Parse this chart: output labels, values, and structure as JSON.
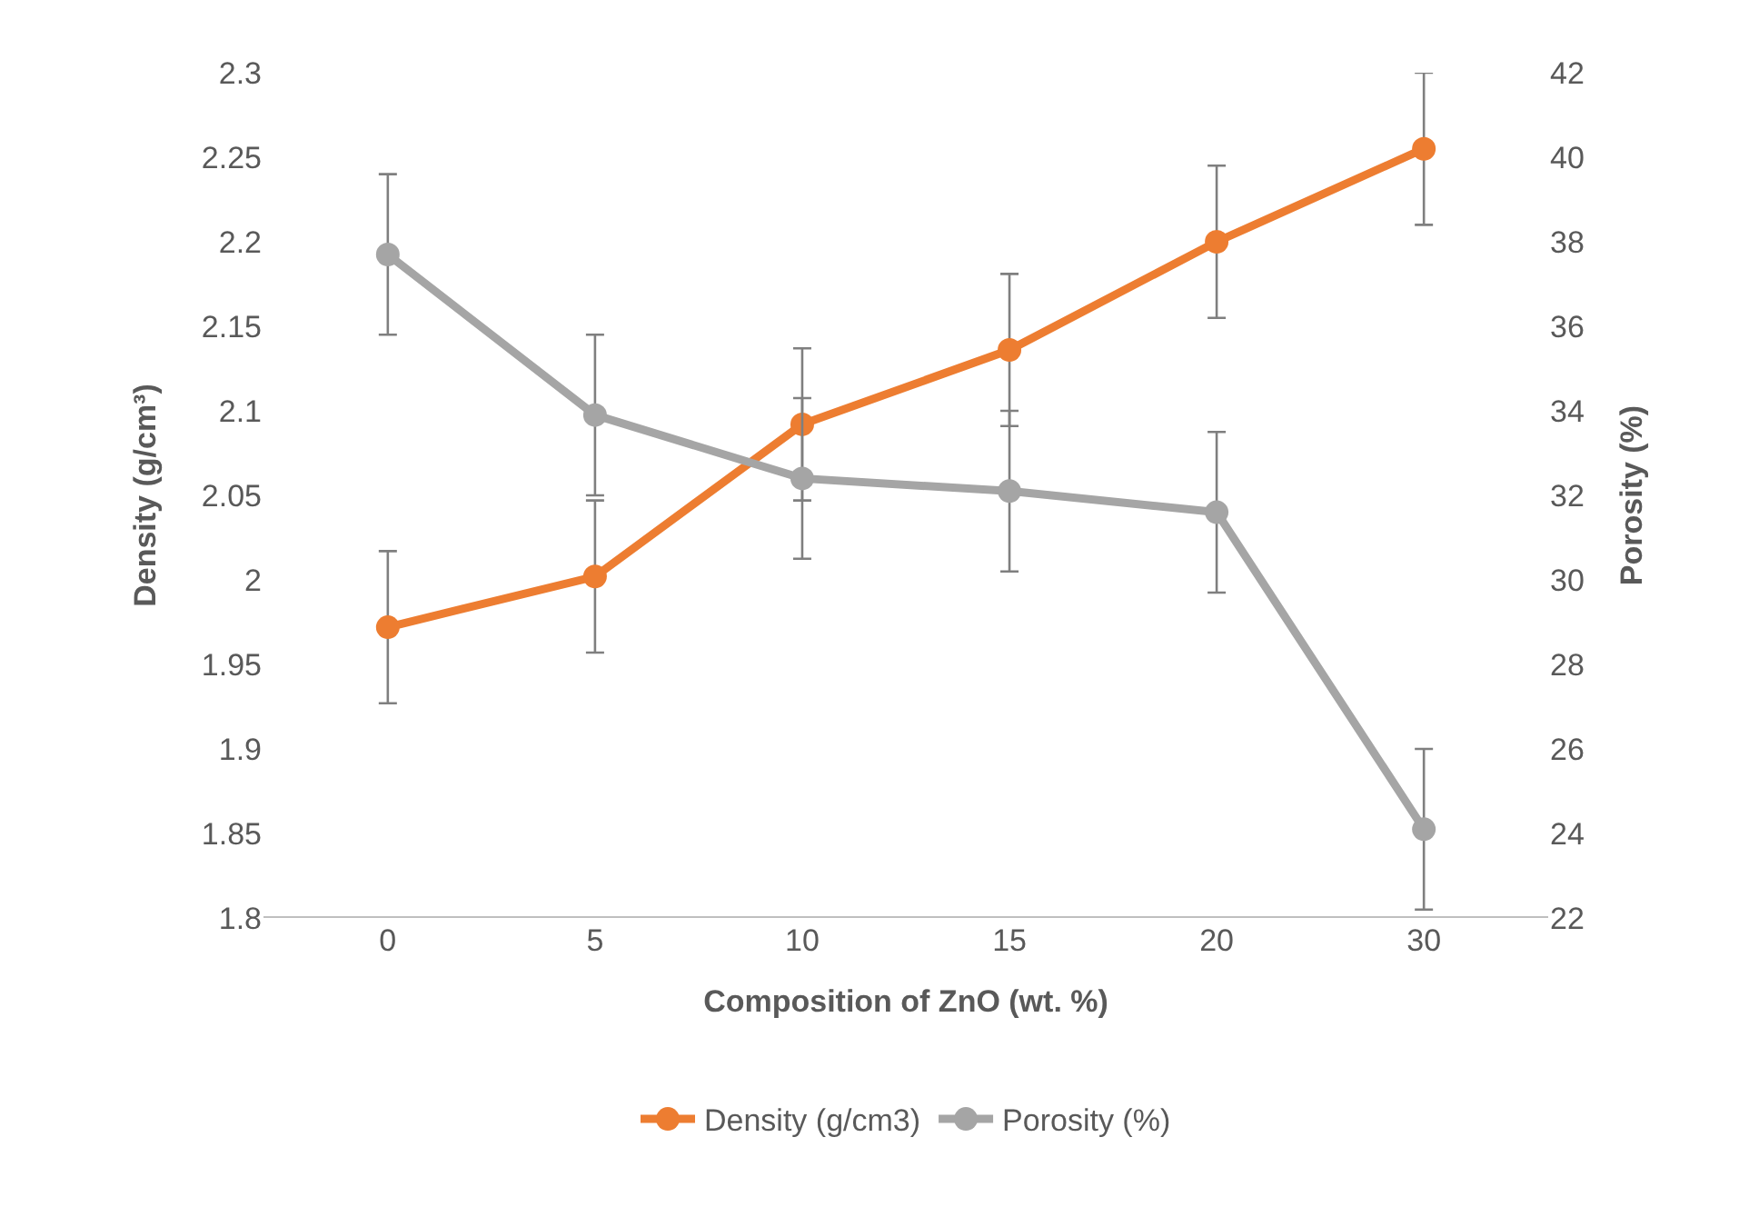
{
  "chart_data": {
    "type": "line",
    "xlabel": "Composition of ZnO (wt. %)",
    "ylabel": "Density (g/cm³)",
    "y2label": "Porosity (%)",
    "categories": [
      "0",
      "5",
      "10",
      "15",
      "20",
      "30"
    ],
    "series": [
      {
        "name": "Density (g/cm3)",
        "color": "#ed7d31",
        "values": [
          1.972,
          2.002,
          2.092,
          2.136,
          2.2,
          2.255
        ],
        "errors": [
          0.045,
          0.045,
          0.045,
          0.045,
          0.045,
          0.045
        ]
      },
      {
        "name": "Porosity (%)",
        "color": "#a5a5a5",
        "axis": "y2",
        "values": [
          37.7,
          33.9,
          32.4,
          32.1,
          31.6,
          24.1
        ],
        "errors": [
          1.9,
          1.9,
          1.9,
          1.9,
          1.9,
          1.9
        ]
      }
    ],
    "ylim": [
      1.8,
      2.3
    ],
    "yticks": [
      1.8,
      1.85,
      1.9,
      1.95,
      2,
      2.05,
      2.1,
      2.15,
      2.2,
      2.25,
      2.3
    ],
    "y2lim": [
      22,
      42
    ],
    "y2ticks": [
      22,
      24,
      26,
      28,
      30,
      32,
      34,
      36,
      38,
      40,
      42
    ],
    "grid": false,
    "legend": "bottom",
    "marker": "circle",
    "line_style": "solid"
  }
}
